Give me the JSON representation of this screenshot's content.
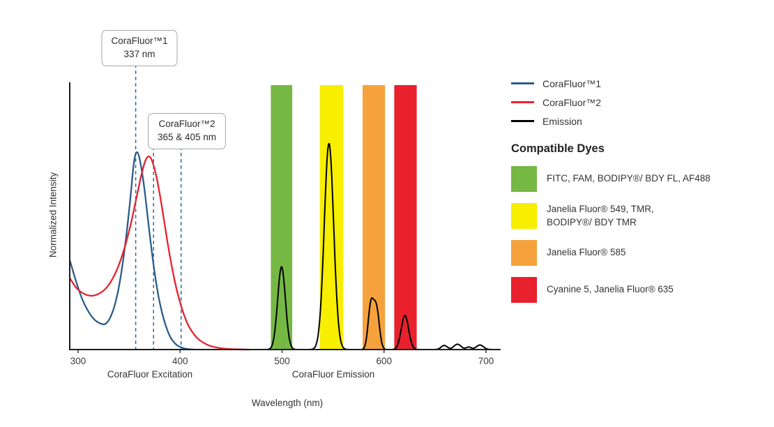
{
  "colors": {
    "corafluor1_blue": "#2a5d89",
    "corafluor2_red": "#e6222e",
    "emission_black": "#000000",
    "marker_dash_blue": "#2b6ca8",
    "band_green": "#76b844",
    "band_yellow": "#f8ee00",
    "band_orange": "#f5a23c",
    "band_red": "#e8212d"
  },
  "legend": {
    "items": [
      {
        "label": "CoraFluor™1",
        "color": "#2a5d89"
      },
      {
        "label": "CoraFluor™2",
        "color": "#e6222e"
      },
      {
        "label": "Emission",
        "color": "#000000"
      }
    ]
  },
  "compatible_dyes": {
    "heading": "Compatible Dyes",
    "items": [
      {
        "label": "FITC, FAM, BODIPY®/ BDY FL, AF488",
        "color": "#76b844"
      },
      {
        "label": "Janelia Fluor® 549, TMR,\nBODIPY®/ BDY TMR",
        "color": "#f8ee00"
      },
      {
        "label": "Janelia Fluor® 585",
        "color": "#f5a23c"
      },
      {
        "label": "Cyanine 5, Janelia Fluor® 635",
        "color": "#e8212d"
      }
    ]
  },
  "chart_data": {
    "type": "line",
    "xlabel": "Wavelength (nm)",
    "ylabel": "Normalized Intensity",
    "x_range": [
      292,
      714
    ],
    "ylim": [
      0,
      1.3
    ],
    "x_ticks": [
      300,
      400,
      500,
      600,
      700
    ],
    "x_axis_sublabels": [
      {
        "text": "CoraFluor Excitation",
        "center_nm": 370
      },
      {
        "text": "CoraFluor Emission",
        "center_nm": 550
      }
    ],
    "annotations": [
      {
        "line1": "CoraFluor™1",
        "line2": "337 nm",
        "marker_nm": [
          356.5
        ]
      },
      {
        "line1": "CoraFluor™2",
        "line2": "365 & 405 nm",
        "marker_nm": [
          374,
          401
        ]
      }
    ],
    "emission_bands": [
      {
        "from_nm": 489,
        "to_nm": 510,
        "color": "#76b844",
        "dyes": "FITC, FAM, BODIPY®/ BDY FL, AF488"
      },
      {
        "from_nm": 537,
        "to_nm": 560,
        "color": "#f8ee00",
        "dyes": "Janelia Fluor® 549, TMR, BODIPY®/ BDY TMR"
      },
      {
        "from_nm": 579,
        "to_nm": 601,
        "color": "#f5a23c",
        "dyes": "Janelia Fluor® 585"
      },
      {
        "from_nm": 610,
        "to_nm": 632,
        "color": "#e8212d",
        "dyes": "Cyanine 5, Janelia Fluor® 635"
      }
    ],
    "series": [
      {
        "key": "corafluor1-excitation",
        "name": "CoraFluor™1",
        "color": "#2a5d89",
        "points": [
          [
            292,
            0.43
          ],
          [
            298,
            0.33
          ],
          [
            304,
            0.245
          ],
          [
            310,
            0.185
          ],
          [
            316,
            0.145
          ],
          [
            322,
            0.126
          ],
          [
            327,
            0.125
          ],
          [
            332,
            0.16
          ],
          [
            337,
            0.235
          ],
          [
            342,
            0.36
          ],
          [
            347,
            0.54
          ],
          [
            351,
            0.72
          ],
          [
            354,
            0.875
          ],
          [
            356,
            0.94
          ],
          [
            358,
            0.955
          ],
          [
            360,
            0.93
          ],
          [
            363,
            0.85
          ],
          [
            366,
            0.74
          ],
          [
            370,
            0.565
          ],
          [
            374,
            0.41
          ],
          [
            378,
            0.28
          ],
          [
            382,
            0.185
          ],
          [
            386,
            0.115
          ],
          [
            390,
            0.065
          ],
          [
            394,
            0.035
          ],
          [
            398,
            0.018
          ],
          [
            403,
            0.007
          ],
          [
            408,
            0.002
          ],
          [
            414,
            0
          ]
        ]
      },
      {
        "key": "corafluor2-excitation",
        "name": "CoraFluor™2",
        "color": "#e6222e",
        "points": [
          [
            292,
            0.345
          ],
          [
            298,
            0.3
          ],
          [
            304,
            0.275
          ],
          [
            310,
            0.262
          ],
          [
            316,
            0.262
          ],
          [
            322,
            0.275
          ],
          [
            328,
            0.3
          ],
          [
            334,
            0.345
          ],
          [
            340,
            0.41
          ],
          [
            346,
            0.5
          ],
          [
            352,
            0.615
          ],
          [
            357,
            0.73
          ],
          [
            362,
            0.845
          ],
          [
            366,
            0.915
          ],
          [
            369,
            0.935
          ],
          [
            372,
            0.92
          ],
          [
            376,
            0.855
          ],
          [
            380,
            0.755
          ],
          [
            384,
            0.635
          ],
          [
            388,
            0.51
          ],
          [
            392,
            0.4
          ],
          [
            396,
            0.305
          ],
          [
            400,
            0.228
          ],
          [
            404,
            0.166
          ],
          [
            408,
            0.118
          ],
          [
            413,
            0.078
          ],
          [
            418,
            0.05
          ],
          [
            424,
            0.03
          ],
          [
            430,
            0.017
          ],
          [
            438,
            0.008
          ],
          [
            448,
            0.003
          ],
          [
            458,
            0.001
          ],
          [
            468,
            0
          ]
        ]
      },
      {
        "key": "emission",
        "name": "Emission",
        "color": "#000000",
        "peaks": [
          {
            "center": 499.5,
            "height": 0.402,
            "sigma": 3.8
          },
          {
            "center": 546,
            "height": 1.0,
            "sigma": 4.6
          },
          {
            "center": 587,
            "height": 0.21,
            "sigma": 2.6
          },
          {
            "center": 592.5,
            "height": 0.2,
            "sigma": 2.8
          },
          {
            "center": 620.5,
            "height": 0.165,
            "sigma": 3.6
          },
          {
            "center": 659,
            "height": 0.02,
            "sigma": 3.0
          },
          {
            "center": 672,
            "height": 0.026,
            "sigma": 3.5
          },
          {
            "center": 683,
            "height": 0.012,
            "sigma": 2.5
          },
          {
            "center": 694,
            "height": 0.022,
            "sigma": 3.5
          }
        ]
      }
    ]
  }
}
